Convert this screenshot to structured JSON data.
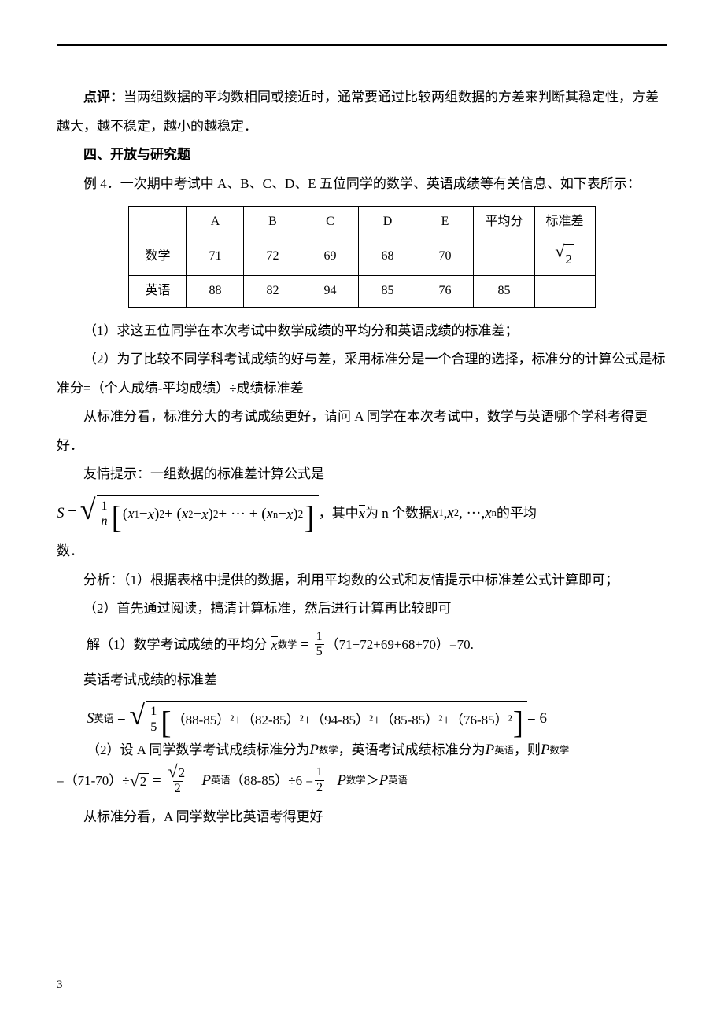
{
  "colors": {
    "text": "#000000",
    "background": "#ffffff",
    "rule": "#000000",
    "table_border": "#000000"
  },
  "typography": {
    "body_font": "SimSun",
    "math_font": "Times New Roman",
    "body_size_pt": 12,
    "line_height": 2.15
  },
  "comment_label": "点评：",
  "comment_text": "当两组数据的平均数相同或接近时，通常要通过比较两组数据的方差来判断其稳定性，方差越大，越不稳定，越小的越稳定．",
  "section4_title": "四、开放与研究题",
  "example4_label": "例 4．",
  "example4_text1": "一次期中考试中 A、B、C、D、E 五位同学的数学、英语成绩等有关信息、如下表所示：",
  "table": {
    "col_headers": [
      "",
      "A",
      "B",
      "C",
      "D",
      "E",
      "平均分",
      "标准差"
    ],
    "rows": [
      {
        "label": "数学",
        "cells": [
          "71",
          "72",
          "69",
          "68",
          "70",
          "",
          "√2"
        ]
      },
      {
        "label": "英语",
        "cells": [
          "88",
          "82",
          "94",
          "85",
          "76",
          "85",
          ""
        ]
      }
    ],
    "cell_font_size": 16,
    "border_color": "#000000",
    "border_width": 1
  },
  "q1": "（1）求这五位同学在本次考试中数学成绩的平均分和英语成绩的标准差；",
  "q2a": "（2）为了比较不同学科考试成绩的好与差，采用标准分是一个合理的选择，标准分的计算公式是标准分=（个人成绩-平均成绩）÷成绩标准差",
  "q2b": "从标准分看，标准分大的考试成绩更好，请问 A 同学在本次考试中，数学与英语哪个学科考得更好．",
  "hint_label": "友情提示：一组数据的标准差计算公式是",
  "std_formula_tail_1": "，其中 ",
  "std_formula_tail_2": " 为 n 个数据 ",
  "std_formula_tail_3": " 的平均",
  "std_formula_tail_4": "数．",
  "analysis_label": "分析：",
  "analysis1": "（1）根据表格中提供的数据，利用平均数的公式和友情提示中标准差公式计算即可；",
  "analysis2": "（2）首先通过阅读，搞清计算标准，然后进行计算再比较即可",
  "sol_label": "解（1）数学考试成绩的平均分",
  "mean_expr_nums": "（71+72+69+68+70）",
  "mean_expr_result": "=70.",
  "english_sd_label": "英话考试成绩的标准差",
  "english_sd_terms": "（88-85）²+（82-85）²+（94-85）²+（85-85）²+（76-85）²",
  "english_sd_result": " = 6",
  "sol2_intro": "（2）设 A 同学数学考试成绩标准分为 ",
  "sol2_mid1": "，英语考试成绩标准分为 ",
  "sol2_mid2": "，则 ",
  "p_math_calc_a": "=（71-70）÷",
  "p_eng_calc_a": "（88-85）÷6 = ",
  "compare_symbol": " ＞ ",
  "conclusion": "从标准分看，A 同学数学比英语考得更好",
  "page_number": "3"
}
